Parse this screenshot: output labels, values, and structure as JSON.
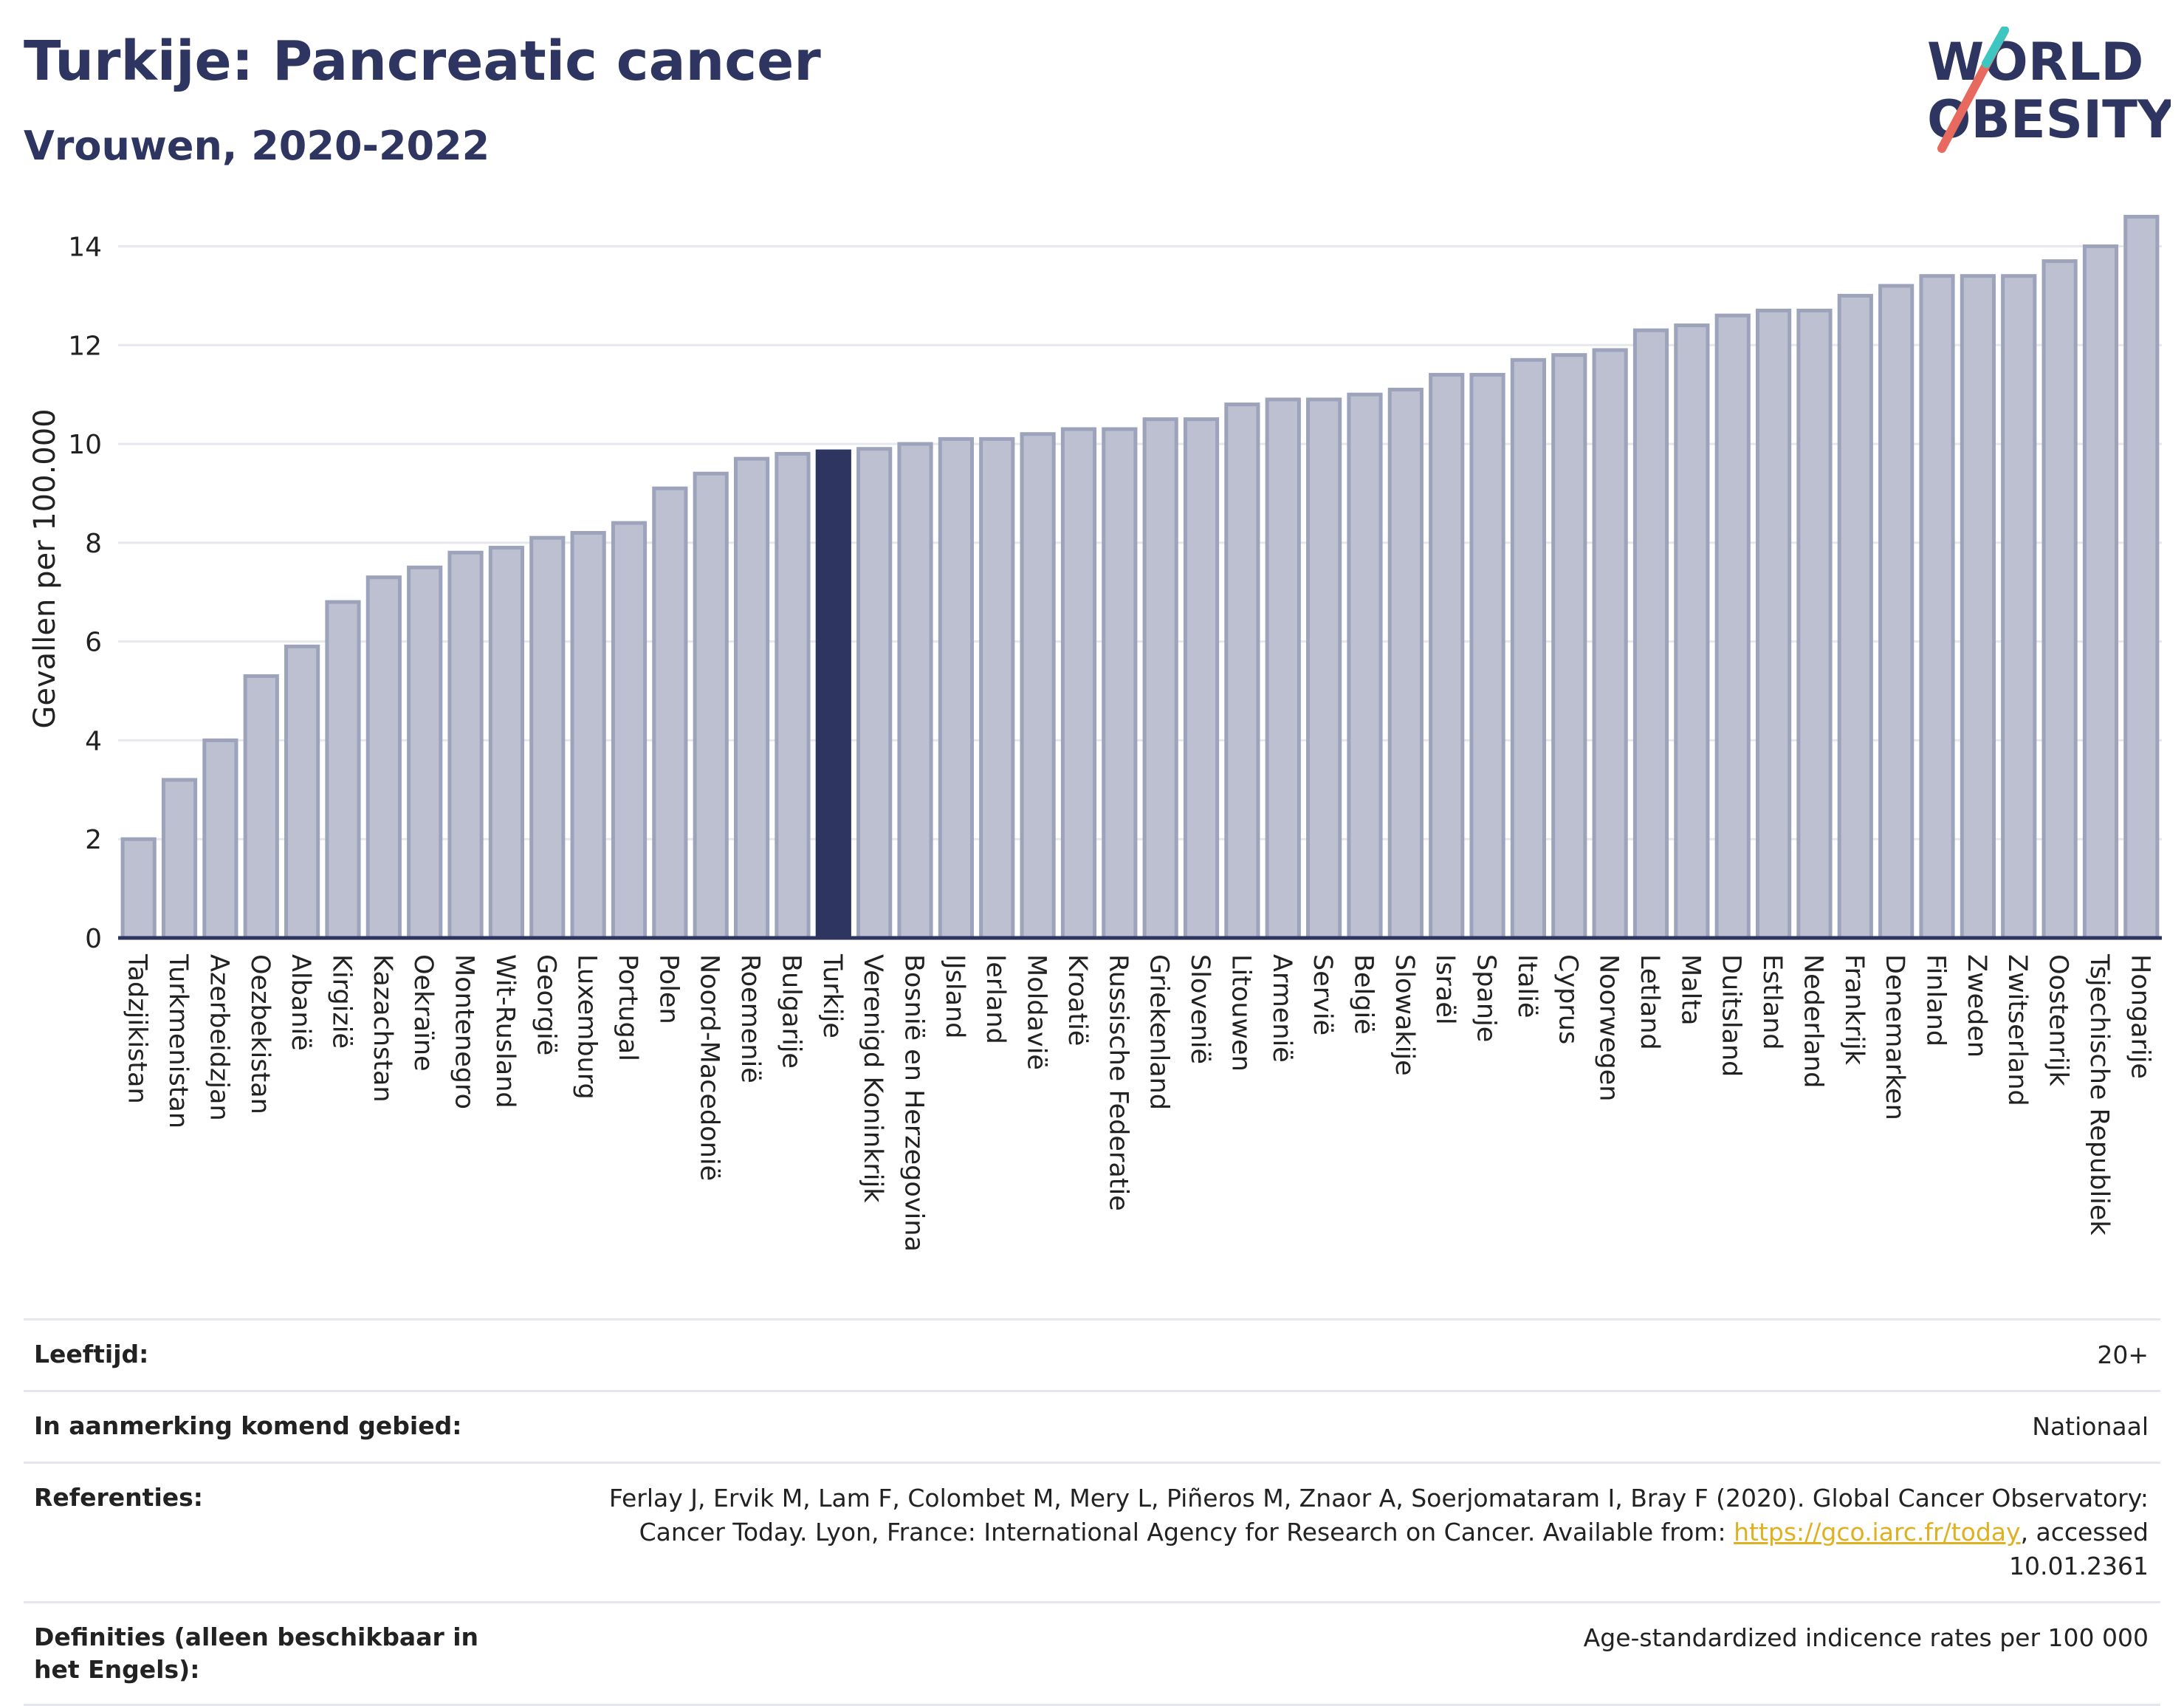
{
  "header": {
    "title": "Turkije: Pancreatic cancer",
    "subtitle": "Vrouwen, 2020-2022"
  },
  "logo": {
    "line1": "WORLD",
    "line2": "OBESITY"
  },
  "colors": {
    "bar": "#bcc0d0",
    "bar_stroke": "#9da3bb",
    "highlight": "#2d3560",
    "text": "#2d3560",
    "grid": "#e6e8ee"
  },
  "chart_data": {
    "type": "bar",
    "ylabel": "Gevallen per 100.000",
    "ylim": [
      0,
      14.8
    ],
    "yticks": [
      0,
      2,
      4,
      6,
      8,
      10,
      12,
      14
    ],
    "highlight": "Turkije",
    "grid": true,
    "categories": [
      "Tadzjikistan",
      "Turkmenistan",
      "Azerbeidzjan",
      "Oezbekistan",
      "Albanië",
      "Kirgizië",
      "Kazachstan",
      "Oekraïne",
      "Montenegro",
      "Wit-Rusland",
      "Georgië",
      "Luxemburg",
      "Portugal",
      "Polen",
      "Noord-Macedonië",
      "Roemenië",
      "Bulgarije",
      "Turkije",
      "Verenigd Koninkrijk",
      "Bosnië en Herzegovina",
      "IJsland",
      "Ierland",
      "Moldavië",
      "Kroatië",
      "Russische Federatie",
      "Griekenland",
      "Slovenië",
      "Litouwen",
      "Armenië",
      "Servië",
      "België",
      "Slowakije",
      "Israël",
      "Spanje",
      "Italië",
      "Cyprus",
      "Noorwegen",
      "Letland",
      "Malta",
      "Duitsland",
      "Estland",
      "Nederland",
      "Frankrijk",
      "Denemarken",
      "Finland",
      "Zweden",
      "Zwitserland",
      "Oostenrijk",
      "Tsjechische Republiek",
      "Hongarije"
    ],
    "values": [
      2.0,
      3.2,
      4.0,
      5.3,
      5.9,
      6.8,
      7.3,
      7.5,
      7.8,
      7.9,
      8.1,
      8.2,
      8.4,
      9.1,
      9.4,
      9.7,
      9.8,
      9.85,
      9.9,
      10.0,
      10.1,
      10.1,
      10.2,
      10.3,
      10.3,
      10.5,
      10.5,
      10.8,
      10.9,
      10.9,
      11.0,
      11.1,
      11.4,
      11.4,
      11.7,
      11.8,
      11.9,
      12.3,
      12.4,
      12.6,
      12.7,
      12.7,
      13.0,
      13.2,
      13.4,
      13.4,
      13.4,
      13.7,
      14.0,
      14.6
    ]
  },
  "info": {
    "rows": [
      {
        "label": "Leeftijd:",
        "value": "20+"
      },
      {
        "label": "In aanmerking komend gebied:",
        "value": "Nationaal"
      },
      {
        "label": "Referenties:",
        "value_pre": "Ferlay J, Ervik M, Lam F, Colombet M, Mery L, Piñeros M, Znaor A, Soerjomataram I, Bray F (2020). Global Cancer Observatory: Cancer Today. Lyon, France: International Agency for Research on Cancer. Available from: ",
        "link": "https://gco.iarc.fr/today",
        "value_post": ", accessed 10.01.2361"
      },
      {
        "label": "Definities (alleen beschikbaar in het Engels):",
        "value": "Age-standardized indicence rates per 100 000"
      }
    ]
  }
}
